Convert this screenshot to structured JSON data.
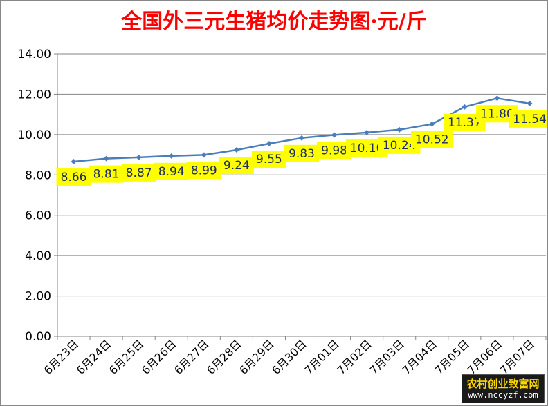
{
  "chart_data": {
    "type": "line",
    "title": "全国外三元生猪均价走势图·元/斤",
    "xlabel": "",
    "ylabel": "",
    "categories": [
      "6月23日",
      "6月24日",
      "6月25日",
      "6月26日",
      "6月27日",
      "6月28日",
      "6月29日",
      "6月30日",
      "7月01日",
      "7月02日",
      "7月03日",
      "7月04日",
      "7月05日",
      "7月06日",
      "7月07日"
    ],
    "series": [
      {
        "values": [
          8.66,
          8.81,
          8.87,
          8.94,
          8.99,
          9.24,
          9.55,
          9.83,
          9.98,
          10.1,
          10.24,
          10.52,
          11.37,
          11.8,
          11.54
        ]
      }
    ],
    "data_labels": [
      "8.66",
      "8.81",
      "8.87",
      "8.94",
      "8.99",
      "9.24",
      "9.55",
      "9.83",
      "9.98",
      "10.10",
      "10.24",
      "10.52",
      "11.37",
      "11.80",
      "11.54"
    ],
    "yticks": [
      "0.00",
      "2.00",
      "4.00",
      "6.00",
      "8.00",
      "10.00",
      "12.00",
      "14.00"
    ],
    "ylim": [
      0,
      14
    ],
    "grid": true,
    "legend": "none",
    "colors": {
      "title": "#ff0000",
      "line": "#4a7ebb",
      "label_bg": "#ffff00",
      "label_text": "#1f2d66",
      "grid": "#868686"
    }
  },
  "watermark": {
    "name": "农村创业致富网",
    "url": "www.nccyzf.com"
  }
}
